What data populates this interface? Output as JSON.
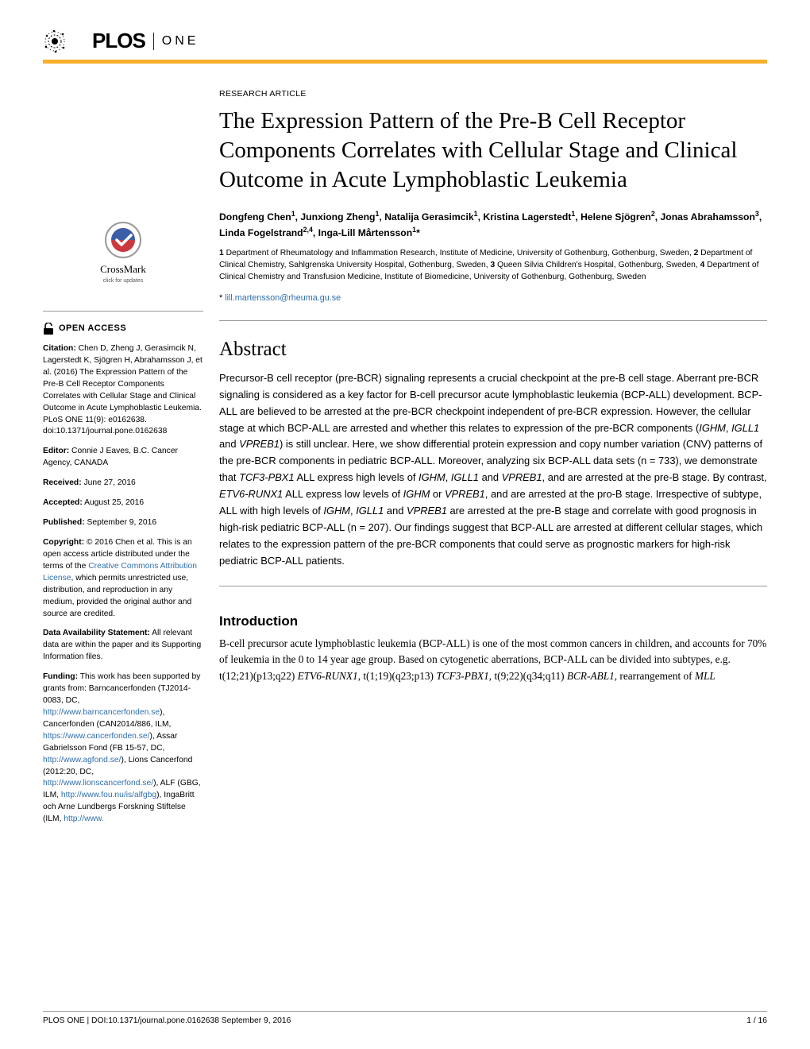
{
  "journal": {
    "name_bold": "PLOS",
    "name_light": "ONE"
  },
  "colors": {
    "accent": "#f8af2d",
    "link": "#2f6fad",
    "text": "#000000",
    "rule": "#999999"
  },
  "article_type": "RESEARCH ARTICLE",
  "title": "The Expression Pattern of the Pre-B Cell Receptor Components Correlates with Cellular Stage and Clinical Outcome in Acute Lymphoblastic Leukemia",
  "authors_html": "Dongfeng Chen<sup>1</sup>, Junxiong Zheng<sup>1</sup>, Natalija Gerasimcik<sup>1</sup>, Kristina Lagerstedt<sup>1</sup>, Helene Sjögren<sup>2</sup>, Jonas Abrahamsson<sup>3</sup>, Linda Fogelstrand<sup>2,4</sup>, Inga-Lill Mårtensson<sup>1</sup>*",
  "affiliations_html": "<b>1</b> Department of Rheumatology and Inflammation Research, Institute of Medicine, University of Gothenburg, Gothenburg, Sweden, <b>2</b> Department of Clinical Chemistry, Sahlgrenska University Hospital, Gothenburg, Sweden, <b>3</b> Queen Silvia Children's Hospital, Gothenburg, Sweden, <b>4</b> Department of Clinical Chemistry and Transfusion Medicine, Institute of Biomedicine, University of Gothenburg, Gothenburg, Sweden",
  "correspondence": {
    "marker": "*",
    "email": "lill.martensson@rheuma.gu.se"
  },
  "crossmark": {
    "label": "CrossMark",
    "sub": "click for updates"
  },
  "open_access": "OPEN ACCESS",
  "citation": {
    "label": "Citation:",
    "text": " Chen D, Zheng J, Gerasimcik N, Lagerstedt K, Sjögren H, Abrahamsson J, et al. (2016) The Expression Pattern of the Pre-B Cell Receptor Components Correlates with Cellular Stage and Clinical Outcome in Acute Lymphoblastic Leukemia. PLoS ONE 11(9): e0162638. doi:10.1371/journal.pone.0162638"
  },
  "editor": {
    "label": "Editor:",
    "text": " Connie J Eaves, B.C. Cancer Agency, CANADA"
  },
  "received": {
    "label": "Received:",
    "text": " June 27, 2016"
  },
  "accepted": {
    "label": "Accepted:",
    "text": " August 25, 2016"
  },
  "published": {
    "label": "Published:",
    "text": " September 9, 2016"
  },
  "copyright": {
    "label": "Copyright:",
    "text_before": " © 2016 Chen et al. This is an open access article distributed under the terms of the ",
    "link": "Creative Commons Attribution License",
    "text_after": ", which permits unrestricted use, distribution, and reproduction in any medium, provided the original author and source are credited."
  },
  "data_avail": {
    "label": "Data Availability Statement:",
    "text": " All relevant data are within the paper and its Supporting Information files."
  },
  "funding": {
    "label": "Funding:",
    "intro": " This work has been supported by grants from: Barncancerfonden (TJ2014-0083, DC, ",
    "l1": "http://www.barncancerfonden.se",
    "t1": "), Cancerfonden (CAN2014/886, ILM, ",
    "l2": "https://www.cancerfonden.se/",
    "t2": "), Assar Gabrielsson Fond (FB 15-57, DC, ",
    "l3": "http://www.agfond.se/",
    "t3": "), Lions Cancerfond (2012:20, DC, ",
    "l4": "http://www.lionscancerfond.se/",
    "t4": "), ALF (GBG, ILM, ",
    "l5": "http://www.fou.nu/is/alfgbg",
    "t5": "), IngaBritt och Arne Lundbergs Forskning Stiftelse (ILM, ",
    "l6": "http://www."
  },
  "abstract": {
    "heading": "Abstract",
    "body_html": "Precursor-B cell receptor (pre-BCR) signaling represents a crucial checkpoint at the pre-B cell stage. Aberrant pre-BCR signaling is considered as a key factor for B-cell precursor acute lymphoblastic leukemia (BCP-ALL) development. BCP-ALL are believed to be arrested at the pre-BCR checkpoint independent of pre-BCR expression. However, the cellular stage at which BCP-ALL are arrested and whether this relates to expression of the pre-BCR components (<i>IGHM</i>, <i>IGLL1</i> and <i>VPREB1</i>) is still unclear. Here, we show differential protein expression and copy number variation (CNV) patterns of the pre-BCR components in pediatric BCP-ALL. Moreover, analyzing six BCP-ALL data sets (n = 733), we demonstrate that <i>TCF3-PBX1</i> ALL express high levels of <i>IGHM</i>, <i>IGLL1</i> and <i>VPREB1</i>, and are arrested at the pre-B stage. By contrast, <i>ETV6-RUNX1</i> ALL express low levels of <i>IGHM</i> or <i>VPREB1</i>, and are arrested at the pro-B stage. Irrespective of subtype, ALL with high levels of <i>IGHM</i>, <i>IGLL1</i> and <i>VPREB1</i> are arrested at the pre-B stage and correlate with good prognosis in high-risk pediatric BCP-ALL (n = 207). Our findings suggest that BCP-ALL are arrested at different cellular stages, which relates to the expression pattern of the pre-BCR components that could serve as prognostic markers for high-risk pediatric BCP-ALL patients."
  },
  "introduction": {
    "heading": "Introduction",
    "body_html": "B-cell precursor acute lymphoblastic leukemia (BCP-ALL) is one of the most common cancers in children, and accounts for 70% of leukemia in the 0 to 14 year age group. Based on cytogenetic aberrations, BCP-ALL can be divided into subtypes, e.g. t(12;21)(p13;q22) <i>ETV6-RUNX1</i>, t(1;19)(q23;p13) <i>TCF3-PBX1</i>, t(9;22)(q34;q11) <i>BCR-ABL1</i>, rearrangement of <i>MLL</i>"
  },
  "footer": {
    "left": "PLOS ONE | DOI:10.1371/journal.pone.0162638    September 9, 2016",
    "right": "1 / 16"
  }
}
